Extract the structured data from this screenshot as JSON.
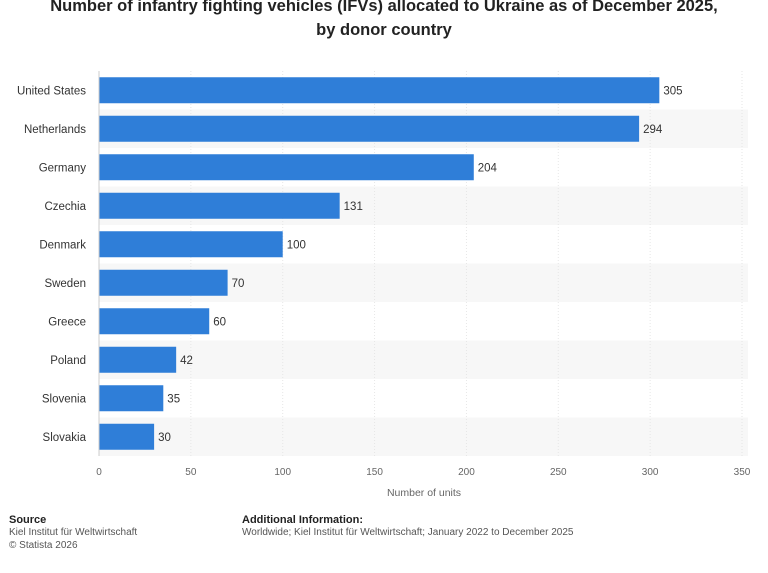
{
  "chart_data": {
    "type": "bar",
    "orientation": "horizontal",
    "title_line1": "Number of infantry fighting vehicles (IFVs) allocated to Ukraine as of December 2025,",
    "title_line2": "by donor country",
    "categories": [
      "United States",
      "Netherlands",
      "Germany",
      "Czechia",
      "Denmark",
      "Sweden",
      "Greece",
      "Poland",
      "Slovenia",
      "Slovakia"
    ],
    "values": [
      305,
      294,
      204,
      131,
      100,
      70,
      60,
      42,
      35,
      30
    ],
    "xlabel": "Number of units",
    "ylabel": "",
    "xlim": [
      0,
      350
    ],
    "xticks": [
      0,
      50,
      100,
      150,
      200,
      250,
      300,
      350
    ],
    "bar_color": "#2f7ed8",
    "grid": true,
    "legend": "none"
  },
  "footer": {
    "source_heading": "Source",
    "source_line1": "Kiel Institut für Weltwirtschaft",
    "source_line2": "© Statista 2026",
    "info_heading": "Additional Information:",
    "info_text": "Worldwide; Kiel Institut für Weltwirtschaft; January 2022 to December 2025"
  }
}
